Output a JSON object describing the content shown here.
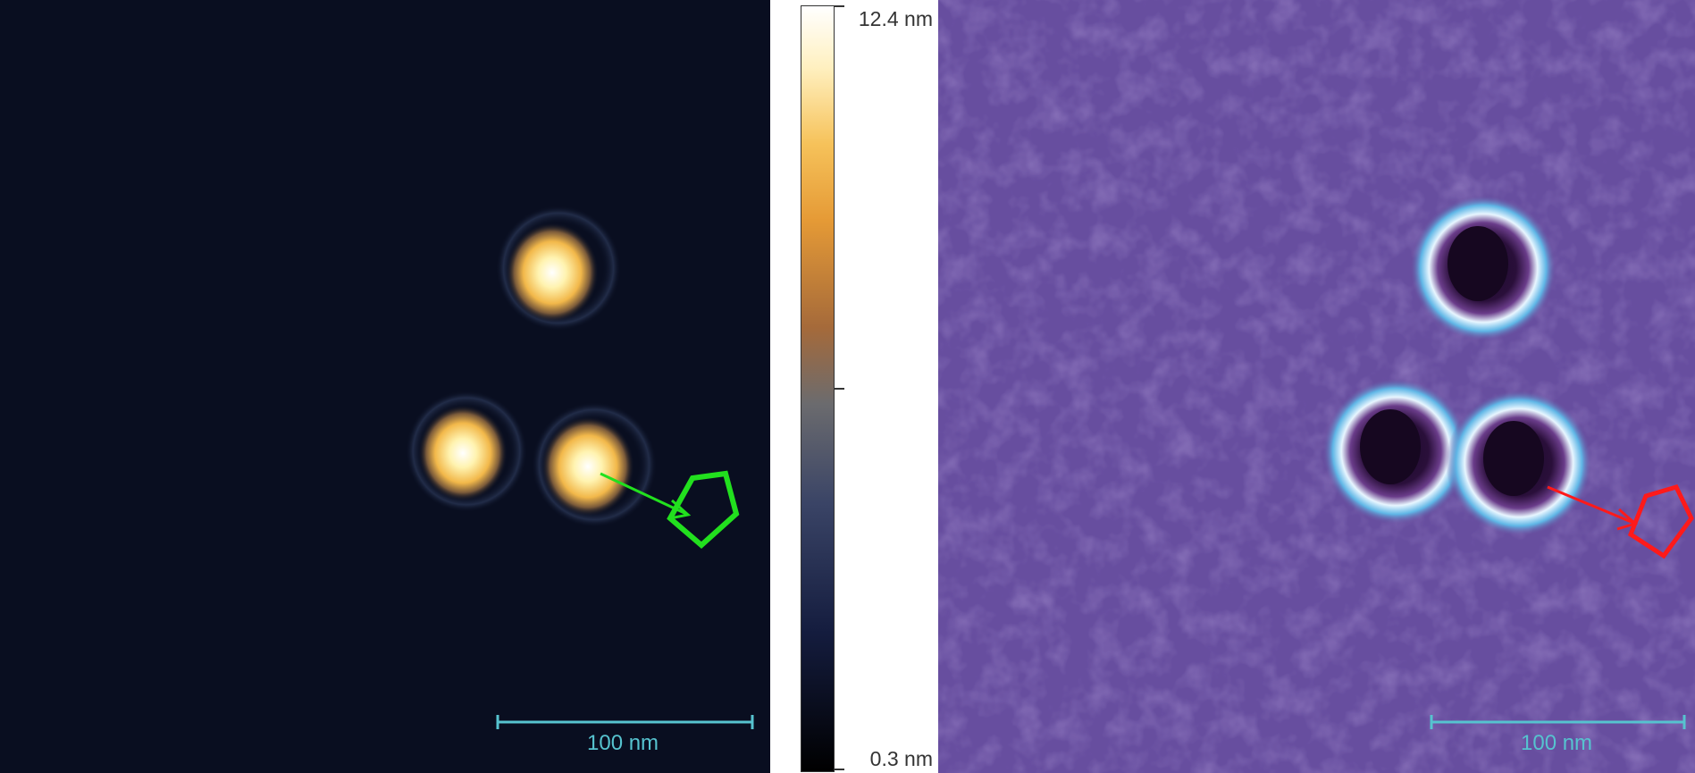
{
  "left_image": {
    "description_color": "#0a1024",
    "scale_bar_label": "100 nm",
    "scale_bar_color": "#56c3cf",
    "marker_color": "#22e01e",
    "marker_shape": "pentagon-with-arrow"
  },
  "colorbar": {
    "max_label": "12.4 nm",
    "min_label": "0.3 nm",
    "colors": [
      "#000000",
      "#1c2a5a",
      "#6a6a70",
      "#c07a3a",
      "#f4b73a",
      "#fff7d0",
      "#ffffff"
    ]
  },
  "right_image": {
    "background_color": "#6b4a9a",
    "scale_bar_label": "100 nm",
    "scale_bar_color": "#56c3cf",
    "marker_color": "#ff1a1a",
    "marker_shape": "pentagon-with-arrow"
  }
}
